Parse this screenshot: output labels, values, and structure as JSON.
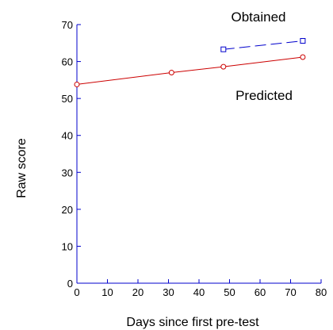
{
  "chart_data": {
    "type": "line",
    "xlabel": "Days since first pre-test",
    "ylabel": "Raw score",
    "xlim": [
      0,
      80
    ],
    "ylim": [
      0,
      70
    ],
    "xticks": [
      0,
      10,
      20,
      30,
      40,
      50,
      60,
      70,
      80
    ],
    "yticks": [
      0,
      10,
      20,
      30,
      40,
      50,
      60,
      70
    ],
    "grid": false,
    "legend": "none",
    "series": [
      {
        "name": "Predicted",
        "color": "#cc0000",
        "marker": "circle",
        "line_style": "solid",
        "x": [
          0,
          31,
          48,
          74
        ],
        "y": [
          53.8,
          57.0,
          58.6,
          61.2
        ]
      },
      {
        "name": "Obtained",
        "color": "#0000cc",
        "marker": "square",
        "line_style": "dashed",
        "x": [
          48,
          74
        ],
        "y": [
          63.3,
          65.6
        ]
      }
    ],
    "annotations": [
      {
        "text": "Obtained",
        "anchor": "above Obtained series"
      },
      {
        "text": "Predicted",
        "anchor": "below Predicted series"
      }
    ]
  }
}
